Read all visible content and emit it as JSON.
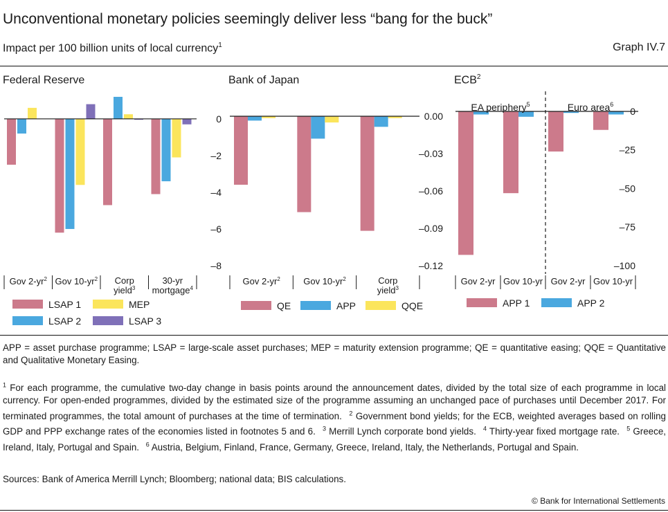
{
  "title": "Unconventional monetary policies seemingly deliver less “bang for the buck”",
  "subtitle": "Impact per 100 billion units of local currency",
  "subtitle_sup": "1",
  "graph_number": "Graph IV.7",
  "colors": {
    "red": "#cc7a8b",
    "blue": "#4aa8df",
    "yellow": "#fbe55c",
    "purple": "#7f70b8"
  },
  "chart_data": [
    {
      "type": "bar",
      "title": "Federal Reserve",
      "title_sup": "",
      "categories": [
        "Gov 2-yr",
        "Gov 10-yr",
        "Corp yield",
        "30-yr mortgage"
      ],
      "category_sups": [
        "2",
        "2",
        "3",
        "4"
      ],
      "ylim": [
        -8,
        1.5
      ],
      "yticks": [
        0,
        -2,
        -4,
        -6,
        -8
      ],
      "ytick_labels": [
        "0",
        "–2",
        "–4",
        "–6",
        "–8"
      ],
      "series": [
        {
          "name": "LSAP 1",
          "color": "#cc7a8b",
          "values": [
            -2.5,
            -6.2,
            -4.7,
            -4.1
          ]
        },
        {
          "name": "LSAP 2",
          "color": "#4aa8df",
          "values": [
            -0.8,
            -6.0,
            1.2,
            -3.4
          ]
        },
        {
          "name": "MEP",
          "color": "#fbe55c",
          "values": [
            0.6,
            -3.6,
            0.25,
            -2.1
          ]
        },
        {
          "name": "LSAP 3",
          "color": "#7f70b8",
          "values": [
            null,
            0.8,
            -0.05,
            -0.3
          ]
        }
      ],
      "legend_layout": "2x2"
    },
    {
      "type": "bar",
      "title": "Bank of Japan",
      "title_sup": "",
      "categories": [
        "Gov 2-yr",
        "Gov 10-yr",
        "Corp yield"
      ],
      "category_sups": [
        "2",
        "2",
        "3"
      ],
      "ylim": [
        -0.12,
        0.02
      ],
      "yticks": [
        0,
        -0.03,
        -0.06,
        -0.09,
        -0.12
      ],
      "ytick_labels": [
        "0.00",
        "–0.03",
        "–0.06",
        "–0.09",
        "–0.12"
      ],
      "series": [
        {
          "name": "QE",
          "color": "#cc7a8b",
          "values": [
            -0.055,
            -0.077,
            -0.092
          ]
        },
        {
          "name": "APP",
          "color": "#4aa8df",
          "values": [
            -0.0035,
            -0.018,
            -0.0085
          ]
        },
        {
          "name": "QQE",
          "color": "#fbe55c",
          "values": [
            -0.0015,
            -0.005,
            -0.0015
          ]
        }
      ],
      "legend_layout": "row"
    },
    {
      "type": "bar",
      "title": "ECB",
      "title_sup": "2",
      "categories": [
        "Gov 2-yr",
        "Gov 10-yr",
        "Gov 2-yr",
        "Gov 10-yr"
      ],
      "category_sups": [
        "",
        "",
        "",
        ""
      ],
      "groups": [
        {
          "label": "EA periphery",
          "sup": "5"
        },
        {
          "label": "Euro area",
          "sup": "6"
        }
      ],
      "ylim": [
        -100,
        13
      ],
      "yticks": [
        0,
        -25,
        -50,
        -75,
        -100
      ],
      "ytick_labels": [
        "0",
        "–25",
        "–50",
        "–75",
        "–100"
      ],
      "series": [
        {
          "name": "APP 1",
          "color": "#cc7a8b",
          "values": [
            -93,
            -53,
            -26,
            -12
          ]
        },
        {
          "name": "APP 2",
          "color": "#4aa8df",
          "values": [
            -2,
            -3.5,
            -1,
            -2
          ]
        }
      ],
      "legend_layout": "row"
    }
  ],
  "notes": {
    "abbreviations": "APP = asset purchase programme; LSAP = large-scale asset purchases; MEP = maturity extension programme; QE = quantitative easing; QQE = Quantitative and Qualitative Monetary Easing.",
    "footnotes": [
      {
        "n": "1",
        "text": "For each programme, the cumulative two-day change in basis points around the announcement dates, divided by the total size of each programme in local currency. For open-ended programmes, divided by the estimated size of the programme assuming an unchanged pace of purchases until December 2017. For terminated programmes, the total amount of purchases at the time of termination."
      },
      {
        "n": "2",
        "text": "Government bond yields; for the ECB, weighted averages based on rolling GDP and PPP exchange rates of the economies listed in footnotes 5 and 6."
      },
      {
        "n": "3",
        "text": "Merrill Lynch corporate bond yields."
      },
      {
        "n": "4",
        "text": "Thirty-year fixed mortgage rate."
      },
      {
        "n": "5",
        "text": "Greece, Ireland, Italy, Portugal and Spain."
      },
      {
        "n": "6",
        "text": "Austria, Belgium, Finland, France, Germany, Greece, Ireland, Italy, the Netherlands, Portugal and Spain."
      }
    ],
    "sources": "Sources: Bank of America Merrill Lynch; Bloomberg; national data; BIS calculations."
  },
  "copyright": "© Bank for International Settlements"
}
